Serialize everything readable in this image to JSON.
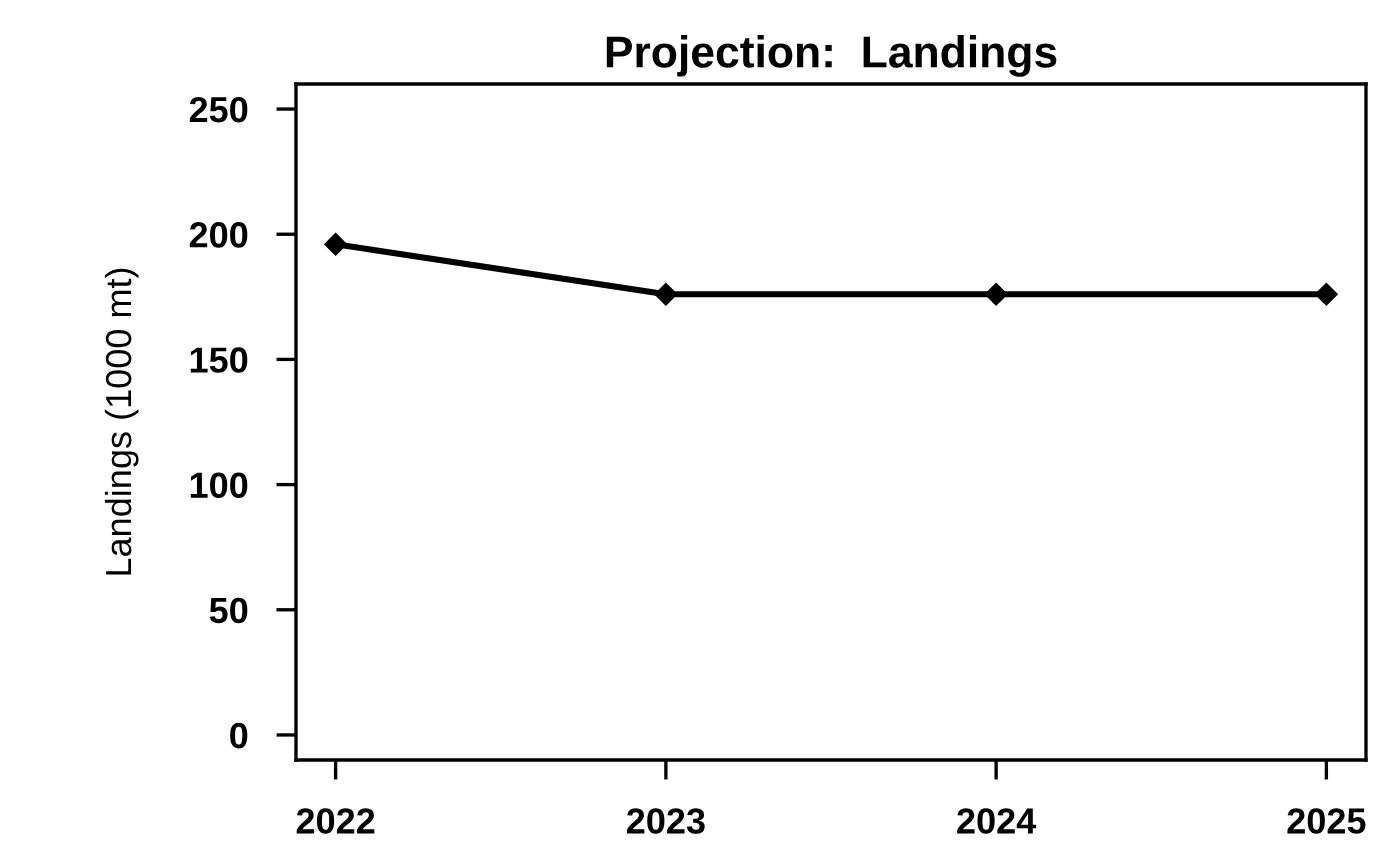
{
  "chart_data": {
    "type": "line",
    "title": "Projection:  Landings",
    "ylabel": "Landings (1000 mt)",
    "x": [
      2022,
      2023,
      2024,
      2025
    ],
    "series": [
      {
        "color": "#000000",
        "values": [
          196,
          176,
          176,
          176
        ]
      }
    ],
    "xlim": [
      2021.88,
      2025.12
    ],
    "xticks": [
      2022,
      2023,
      2024,
      2025
    ],
    "ylim": [
      -10,
      260
    ],
    "yticks": [
      0,
      50,
      100,
      150,
      200,
      250
    ],
    "marker": "diamond",
    "line_style": "solid",
    "grid": false
  }
}
